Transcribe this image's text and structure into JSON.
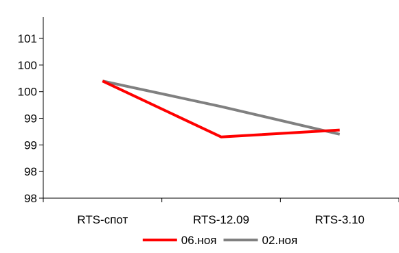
{
  "chart_data": {
    "type": "line",
    "categories": [
      "RTS-спот",
      "RTS-12.09",
      "RTS-3.10"
    ],
    "series": [
      {
        "name": "06.ноя",
        "color": "#ff0000",
        "values": [
          100.0,
          98.95,
          99.08
        ]
      },
      {
        "name": "02.ноя",
        "color": "#808080",
        "values": [
          100.0,
          99.52,
          99.0
        ]
      }
    ],
    "ylim": [
      97.8,
      101.2
    ],
    "y_ticks": [
      97.8,
      98.3,
      98.8,
      99.3,
      99.8,
      100.3,
      100.8
    ],
    "y_tick_labels": [
      "98",
      "98",
      "99",
      "99",
      "100",
      "100",
      "101"
    ],
    "grid": false,
    "legend_position": "bottom",
    "title": "",
    "xlabel": "",
    "ylabel": ""
  }
}
